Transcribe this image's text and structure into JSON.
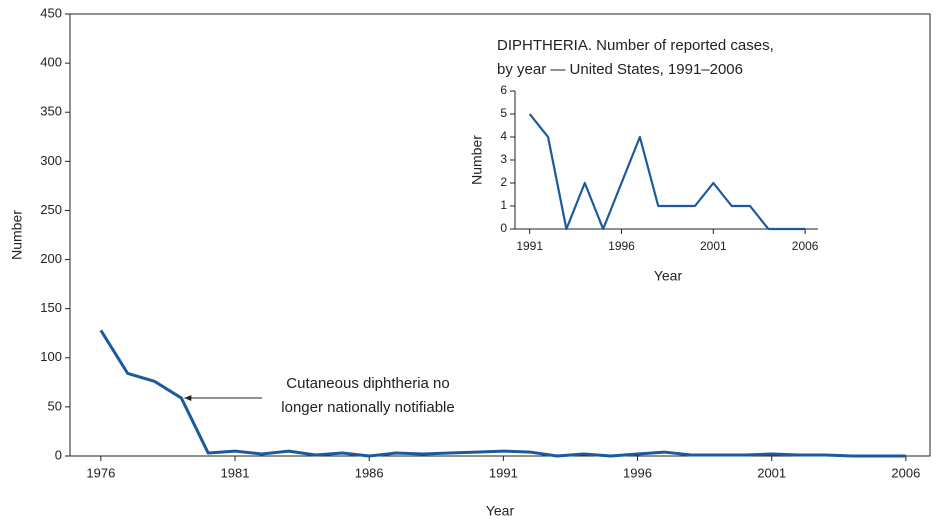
{
  "chart_data": [
    {
      "type": "line",
      "x": [
        1976,
        1977,
        1978,
        1979,
        1980,
        1981,
        1982,
        1983,
        1984,
        1985,
        1986,
        1987,
        1988,
        1989,
        1990,
        1991,
        1992,
        1993,
        1994,
        1995,
        1996,
        1997,
        1998,
        1999,
        2000,
        2001,
        2002,
        2003,
        2004,
        2005,
        2006
      ],
      "series": [
        {
          "color": "#1b5a9c",
          "values": [
            128,
            84,
            76,
            59,
            3,
            5,
            2,
            5,
            1,
            3,
            0,
            3,
            2,
            3,
            4,
            5,
            4,
            0,
            2,
            0,
            2,
            4,
            1,
            1,
            1,
            2,
            1,
            1,
            0,
            0,
            0
          ]
        }
      ],
      "xlim": [
        1974.85,
        2006.9
      ],
      "xticks": [
        1976,
        1981,
        1986,
        1991,
        1996,
        2001,
        2006
      ],
      "ylim": [
        0,
        450
      ],
      "yticks": [
        0,
        50,
        100,
        150,
        200,
        250,
        300,
        350,
        400,
        450
      ],
      "x_label": "Year",
      "y_label": "Number",
      "annotation": [
        "Cutaneous diphtheria no",
        "longer nationally notifiable"
      ],
      "annotation_x": 1979
    },
    {
      "type": "line",
      "title": [
        "DIPHTHERIA. Number of reported cases,",
        "by year — United States, 1991–2006"
      ],
      "x": [
        1991,
        1992,
        1993,
        1994,
        1995,
        1996,
        1997,
        1998,
        1999,
        2000,
        2001,
        2002,
        2003,
        2004,
        2005,
        2006
      ],
      "series": [
        {
          "color": "#1b5a9c",
          "values": [
            5,
            4,
            0,
            2,
            0,
            2,
            4,
            1,
            1,
            1,
            2,
            1,
            1,
            0,
            0,
            0
          ]
        }
      ],
      "xlim": [
        1990.2,
        2006.7
      ],
      "xticks": [
        1991,
        1996,
        2001,
        2006
      ],
      "ylim": [
        0,
        6
      ],
      "yticks": [
        0,
        1,
        2,
        3,
        4,
        5,
        6
      ],
      "x_label": "Year",
      "y_label": "Number"
    }
  ]
}
